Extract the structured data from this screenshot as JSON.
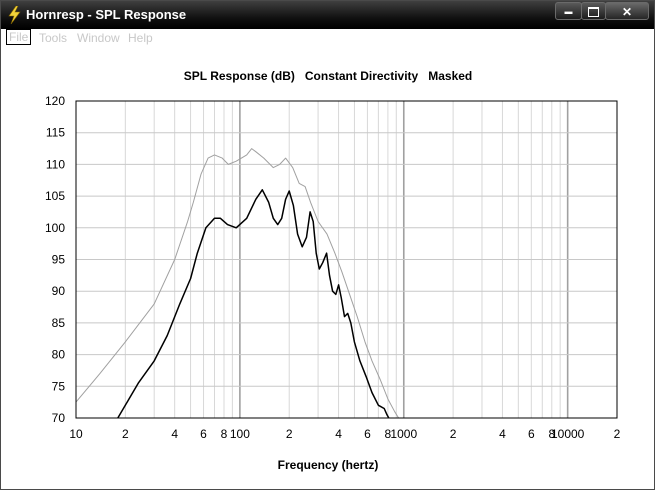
{
  "window": {
    "title": "Hornresp - SPL Response",
    "controls": {
      "minimize": "▬",
      "maximize": "",
      "close": "✕"
    }
  },
  "menu": {
    "items": [
      "File",
      "Tools",
      "Window",
      "Help"
    ]
  },
  "colors": {
    "titlebar": "#111111",
    "grid": "#c8c8c8",
    "major_grid": "#a0a0a0",
    "series_main": "#000000",
    "series_ref": "#a0a0a0"
  },
  "icons": {
    "app": "lightning-bolt-icon"
  },
  "chart_data": {
    "type": "line",
    "title": "SPL Response (dB)   Constant Directivity   Masked",
    "xlabel": "Frequency (hertz)",
    "ylabel": "",
    "xscale": "log",
    "xlim": [
      10,
      20000
    ],
    "ylim": [
      70,
      120
    ],
    "yticks": [
      70,
      75,
      80,
      85,
      90,
      95,
      100,
      105,
      110,
      115,
      120
    ],
    "xtick_labels": [
      {
        "v": 10,
        "t": "10"
      },
      {
        "v": 20,
        "t": "2"
      },
      {
        "v": 40,
        "t": "4"
      },
      {
        "v": 60,
        "t": "6"
      },
      {
        "v": 80,
        "t": "8"
      },
      {
        "v": 100,
        "t": "100"
      },
      {
        "v": 200,
        "t": "2"
      },
      {
        "v": 400,
        "t": "4"
      },
      {
        "v": 600,
        "t": "6"
      },
      {
        "v": 800,
        "t": "8"
      },
      {
        "v": 1000,
        "t": "1000"
      },
      {
        "v": 2000,
        "t": "2"
      },
      {
        "v": 4000,
        "t": "4"
      },
      {
        "v": 6000,
        "t": "6"
      },
      {
        "v": 8000,
        "t": "8"
      },
      {
        "v": 10000,
        "t": "10000"
      },
      {
        "v": 20000,
        "t": "2"
      }
    ],
    "grid": true,
    "series": [
      {
        "color": "#000000",
        "points": [
          [
            18,
            70
          ],
          [
            20,
            72
          ],
          [
            24,
            75.5
          ],
          [
            30,
            79
          ],
          [
            36,
            83
          ],
          [
            43,
            88
          ],
          [
            50,
            92
          ],
          [
            55,
            96
          ],
          [
            62,
            100
          ],
          [
            70,
            101.5
          ],
          [
            76,
            101.5
          ],
          [
            84,
            100.5
          ],
          [
            95,
            100
          ],
          [
            110,
            101.5
          ],
          [
            125,
            104.5
          ],
          [
            137,
            106
          ],
          [
            150,
            104
          ],
          [
            160,
            101.5
          ],
          [
            170,
            100.5
          ],
          [
            180,
            101.5
          ],
          [
            190,
            104.5
          ],
          [
            200,
            105.8
          ],
          [
            212,
            103.5
          ],
          [
            225,
            99
          ],
          [
            240,
            97
          ],
          [
            255,
            98.5
          ],
          [
            268,
            102.5
          ],
          [
            280,
            101
          ],
          [
            292,
            96
          ],
          [
            305,
            93.5
          ],
          [
            320,
            94.5
          ],
          [
            338,
            96
          ],
          [
            352,
            92.5
          ],
          [
            368,
            90
          ],
          [
            385,
            89.5
          ],
          [
            400,
            91
          ],
          [
            415,
            89
          ],
          [
            435,
            86
          ],
          [
            455,
            86.5
          ],
          [
            475,
            85
          ],
          [
            500,
            82
          ],
          [
            540,
            79
          ],
          [
            590,
            76.5
          ],
          [
            640,
            74
          ],
          [
            700,
            72
          ],
          [
            760,
            71.5
          ],
          [
            790,
            70.5
          ],
          [
            810,
            70
          ]
        ]
      },
      {
        "color": "#a0a0a0",
        "points": [
          [
            10,
            72.5
          ],
          [
            14,
            77
          ],
          [
            20,
            82
          ],
          [
            30,
            88
          ],
          [
            40,
            95
          ],
          [
            48,
            101
          ],
          [
            52,
            104
          ],
          [
            58,
            108.5
          ],
          [
            64,
            111
          ],
          [
            70,
            111.5
          ],
          [
            78,
            111
          ],
          [
            85,
            110
          ],
          [
            95,
            110.5
          ],
          [
            110,
            111.5
          ],
          [
            118,
            112.5
          ],
          [
            125,
            112
          ],
          [
            140,
            111
          ],
          [
            160,
            109.5
          ],
          [
            175,
            110
          ],
          [
            190,
            111
          ],
          [
            210,
            109.5
          ],
          [
            230,
            107
          ],
          [
            250,
            106.5
          ],
          [
            270,
            104
          ],
          [
            300,
            101
          ],
          [
            340,
            99
          ],
          [
            380,
            96
          ],
          [
            420,
            93
          ],
          [
            460,
            90
          ],
          [
            520,
            86
          ],
          [
            580,
            82
          ],
          [
            640,
            79
          ],
          [
            720,
            76
          ],
          [
            800,
            73
          ],
          [
            880,
            71
          ],
          [
            930,
            70
          ]
        ]
      }
    ]
  }
}
